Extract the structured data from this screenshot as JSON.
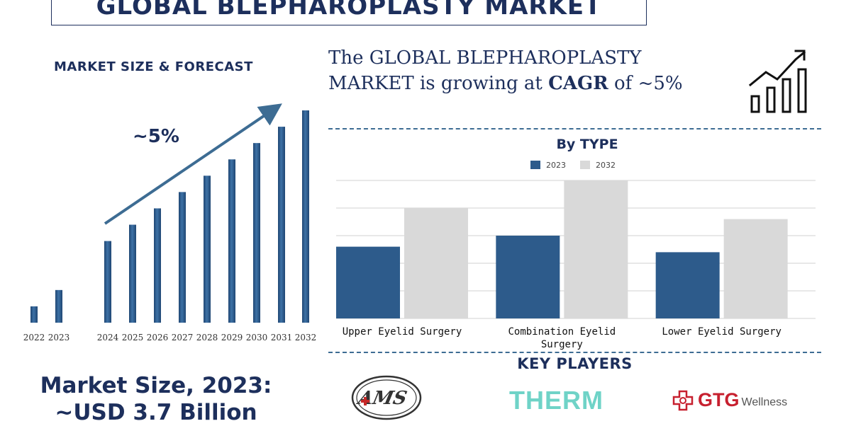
{
  "header": {
    "title": "GLOBAL BLEPHAROPLASTY MARKET"
  },
  "left_panel": {
    "heading": "MARKET SIZE & FORECAST",
    "growth_label": "~5%",
    "market_size_line1": "Market Size, 2023:",
    "market_size_line2": "~USD 3.7 Billion"
  },
  "right_panel": {
    "headline_part1": "The GLOBAL BLEPHAROPLASTY",
    "headline_part2": "MARKET is growing at ",
    "headline_cagr": "CAGR",
    "headline_part3": " of ~5%",
    "key_players_title": "KEY PLAYERS",
    "key_players": [
      "AMS",
      "THERM",
      "GTG",
      "Wellness"
    ]
  },
  "colors": {
    "navy": "#1d2f5c",
    "bar_blue": "#2d5b8b",
    "bar_gray": "#d9d9d9",
    "arrow": "#3d6c93"
  },
  "chart_data": [
    {
      "type": "bar",
      "title": "MARKET SIZE & FORECAST",
      "categories": [
        "2022",
        "2023",
        "2024",
        "2025",
        "2026",
        "2027",
        "2028",
        "2029",
        "2030",
        "2031",
        "2032"
      ],
      "values": [
        1,
        2,
        5,
        6,
        7,
        8,
        9,
        10,
        11,
        12,
        13
      ],
      "annotation": "~5%",
      "grid": false
    },
    {
      "type": "bar",
      "title": "By TYPE",
      "categories": [
        "Upper Eyelid Surgery",
        "Combination Eyelid Surgery",
        "Lower Eyelid Surgery"
      ],
      "series": [
        {
          "name": "2023",
          "values": [
            1.3,
            1.5,
            1.2
          ]
        },
        {
          "name": "2032",
          "values": [
            2.0,
            2.5,
            1.8
          ]
        }
      ],
      "ylim": [
        0,
        2.5
      ],
      "legend": "top-center",
      "grid": true
    }
  ]
}
